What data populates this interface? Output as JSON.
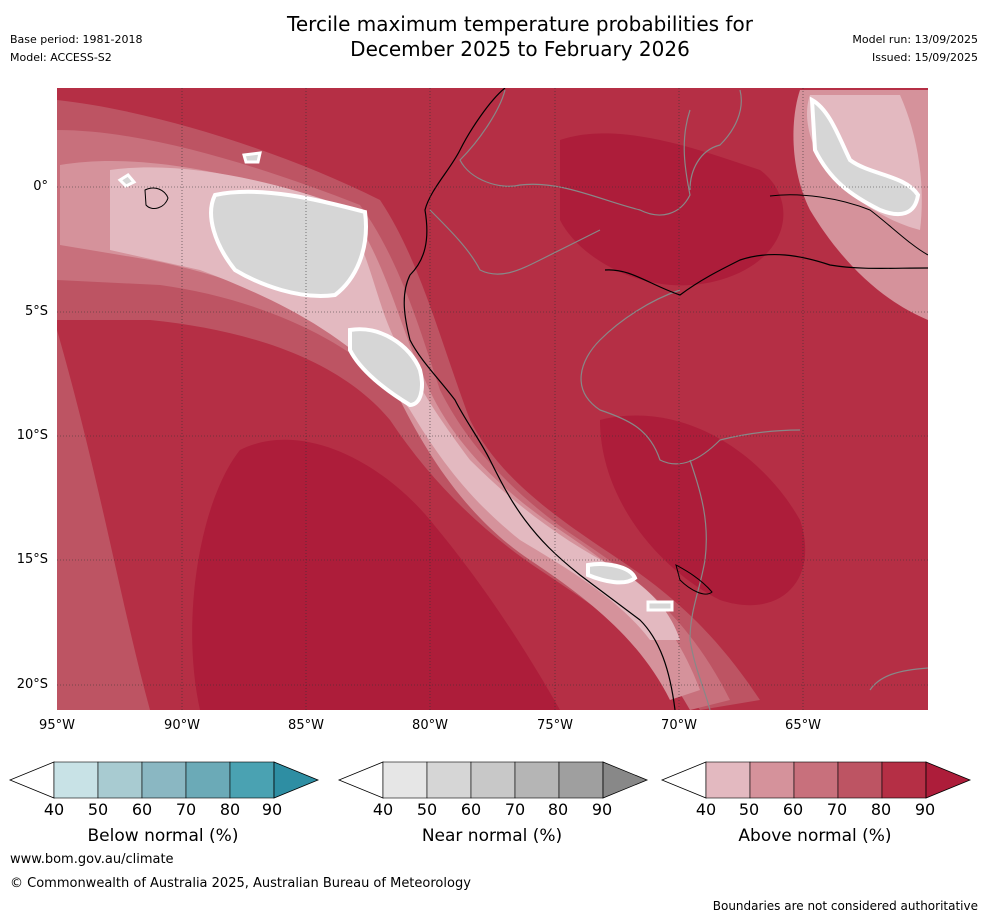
{
  "title_line1": "Tercile maximum temperature probabilities for",
  "title_line2": "December 2025 to February 2026",
  "base_period": "Base period: 1981-2018",
  "model": "Model: ACCESS-S2",
  "model_run": "Model run: 13/09/2025",
  "issued": "Issued: 15/09/2025",
  "y_ticks": [
    "0°",
    "5°S",
    "10°S",
    "15°S",
    "20°S"
  ],
  "x_ticks": [
    "95°W",
    "90°W",
    "85°W",
    "80°W",
    "75°W",
    "70°W",
    "65°W"
  ],
  "colorbars": [
    {
      "label": "Below normal (%)",
      "ticks": [
        "40",
        "50",
        "60",
        "70",
        "80",
        "90"
      ],
      "colors": [
        "#c8e2e6",
        "#a8cbd1",
        "#8ab7c2",
        "#6baab7",
        "#4aa2b2",
        "#2e8ea3"
      ]
    },
    {
      "label": "Near normal (%)",
      "ticks": [
        "40",
        "50",
        "60",
        "70",
        "80",
        "90"
      ],
      "colors": [
        "#e6e6e6",
        "#d6d6d6",
        "#c8c8c8",
        "#b5b5b5",
        "#9f9f9f",
        "#888888"
      ]
    },
    {
      "label": "Above normal (%)",
      "ticks": [
        "40",
        "50",
        "60",
        "70",
        "80",
        "90"
      ],
      "colors": [
        "#e3b9c0",
        "#d5929b",
        "#c8707c",
        "#bd5463",
        "#b52f45",
        "#ad1d3a"
      ]
    }
  ],
  "website": "www.bom.gov.au/climate",
  "copyright": "© Commonwealth of Australia 2025, Australian Bureau of Meteorology",
  "disclaimer": "Boundaries are not considered authoritative"
}
